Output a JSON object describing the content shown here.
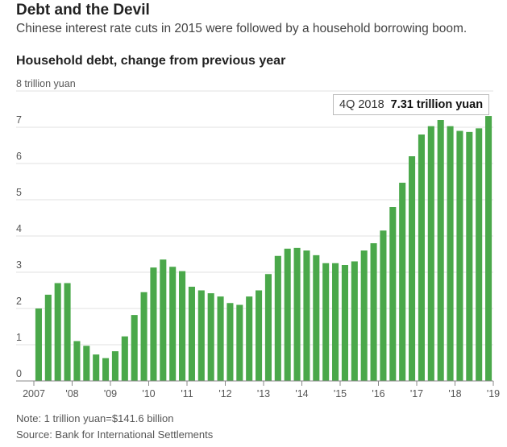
{
  "header": {
    "title": "Debt and the Devil",
    "subtitle": "Chinese interest rate cuts in 2015 were followed by a household borrowing boom."
  },
  "footer": {
    "note": "Note: 1 trillion yuan=$141.6 billion",
    "source": "Source: Bank for International Settlements"
  },
  "colors": {
    "bar": "#4aa84a",
    "grid": "#e2e2e2",
    "axis": "#888888"
  },
  "chart_data": {
    "type": "bar",
    "title": "Household debt, change from previous year",
    "ylabel": "",
    "ylim": [
      0,
      8
    ],
    "yticks": [
      0,
      1,
      2,
      3,
      4,
      5,
      6,
      7,
      8
    ],
    "ytick_labels": [
      "0",
      "1",
      "2",
      "3",
      "4",
      "5",
      "6",
      "7",
      "8 trillion yuan"
    ],
    "grid": true,
    "xtick_labels": [
      "2007",
      "'08",
      "'09",
      "'10",
      "'11",
      "'12",
      "'13",
      "'14",
      "'15",
      "'16",
      "'17",
      "'18",
      "'19"
    ],
    "categories": [
      "1Q 2007",
      "2Q 2007",
      "3Q 2007",
      "4Q 2007",
      "1Q 2008",
      "2Q 2008",
      "3Q 2008",
      "4Q 2008",
      "1Q 2009",
      "2Q 2009",
      "3Q 2009",
      "4Q 2009",
      "1Q 2010",
      "2Q 2010",
      "3Q 2010",
      "4Q 2010",
      "1Q 2011",
      "2Q 2011",
      "3Q 2011",
      "4Q 2011",
      "1Q 2012",
      "2Q 2012",
      "3Q 2012",
      "4Q 2012",
      "1Q 2013",
      "2Q 2013",
      "3Q 2013",
      "4Q 2013",
      "1Q 2014",
      "2Q 2014",
      "3Q 2014",
      "4Q 2014",
      "1Q 2015",
      "2Q 2015",
      "3Q 2015",
      "4Q 2015",
      "1Q 2016",
      "2Q 2016",
      "3Q 2016",
      "4Q 2016",
      "1Q 2017",
      "2Q 2017",
      "3Q 2017",
      "4Q 2017",
      "1Q 2018",
      "2Q 2018",
      "3Q 2018",
      "4Q 2018"
    ],
    "values": [
      2.0,
      2.38,
      2.7,
      2.7,
      1.1,
      0.97,
      0.73,
      0.63,
      0.82,
      1.23,
      1.82,
      2.45,
      3.13,
      3.35,
      3.15,
      3.03,
      2.6,
      2.5,
      2.42,
      2.33,
      2.15,
      2.1,
      2.33,
      2.5,
      2.95,
      3.45,
      3.65,
      3.67,
      3.6,
      3.47,
      3.25,
      3.25,
      3.2,
      3.3,
      3.6,
      3.8,
      4.15,
      4.8,
      5.47,
      6.2,
      6.8,
      7.03,
      7.2,
      7.03,
      6.9,
      6.87,
      6.97,
      7.31
    ],
    "annotation": {
      "period": "4Q 2018",
      "value_text": "7.31 trillion yuan"
    }
  }
}
